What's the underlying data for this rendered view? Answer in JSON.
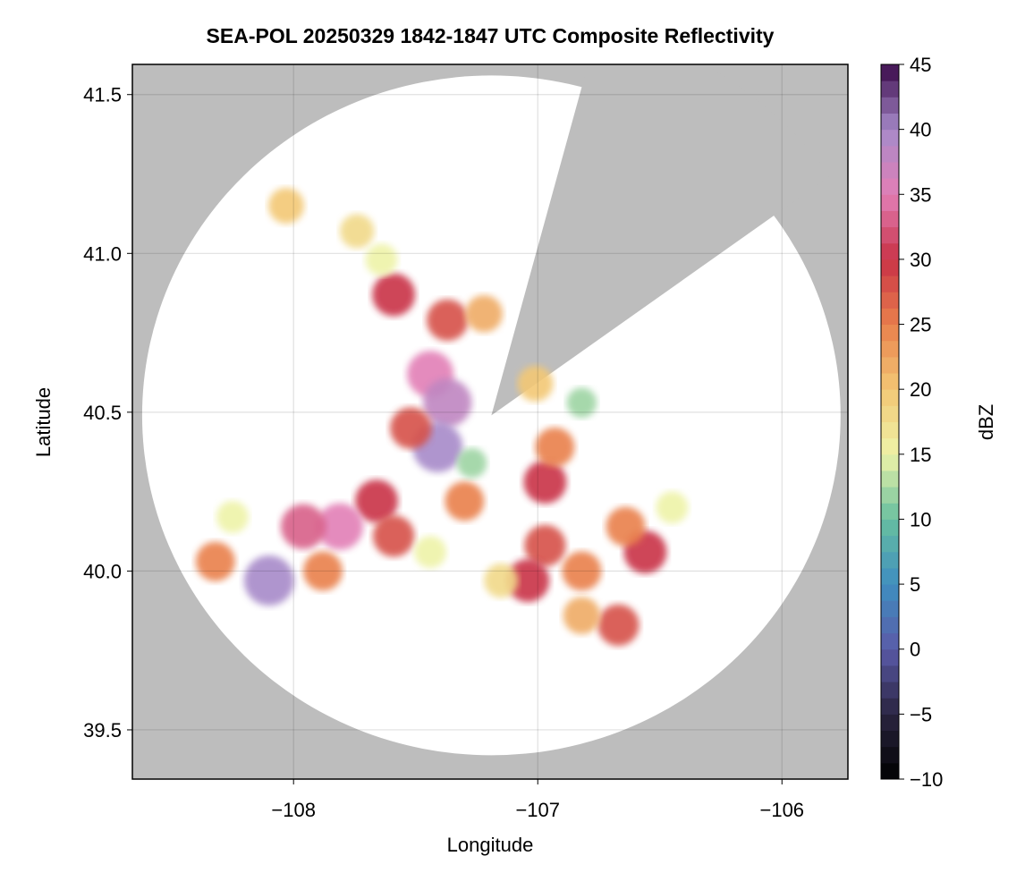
{
  "chart_data": {
    "type": "radar-map",
    "title": "SEA-POL 20250329 1842-1847 UTC Composite Reflectivity",
    "x_label": "Longitude",
    "y_label": "Latitude",
    "colorbar_label": "dBZ",
    "xlim": [
      -108.66,
      -105.73
    ],
    "ylim": [
      39.345,
      41.595
    ],
    "xticks": [
      {
        "value": -108,
        "label": "−108"
      },
      {
        "value": -107,
        "label": "−107"
      },
      {
        "value": -106,
        "label": "−106"
      }
    ],
    "yticks": [
      39.5,
      {
        "value": 40.0,
        "label": "40.0"
      },
      40.5,
      {
        "value": 41.0,
        "label": "41.0"
      },
      41.5
    ],
    "grid": true,
    "clim": [
      -10,
      45
    ],
    "cticks": [
      {
        "value": -10,
        "label": "−10"
      },
      {
        "value": -5,
        "label": "−5"
      },
      0,
      5,
      10,
      15,
      20,
      25,
      30,
      35,
      40,
      45
    ],
    "colormap": [
      "#000000",
      "#2a2440",
      "#5a5aa8",
      "#3f8ec0",
      "#67bfa0",
      "#eef3a8",
      "#f3c875",
      "#e9804c",
      "#c93246",
      "#e27fb6",
      "#a78ac9",
      "#3a0a4a"
    ],
    "background_color": "#bdbdbd",
    "radar": {
      "lon": -107.19,
      "lat": 40.49,
      "lon_radius": 1.43,
      "lat_radius": 1.07,
      "blocked_azimuths": [
        15,
        54
      ]
    },
    "echoes": {
      "lon": [
        -107.59,
        -107.37,
        -107.22,
        -107.44,
        -107.37,
        -107.41,
        -107.52,
        -107.66,
        -107.81,
        -107.96,
        -108.1,
        -108.32,
        -108.25,
        -107.88,
        -107.59,
        -107.3,
        -107.27,
        -106.97,
        -106.93,
        -107.01,
        -106.82,
        -106.97,
        -107.04,
        -106.82,
        -106.56,
        -106.64,
        -106.67,
        -106.82,
        -107.15,
        -107.44,
        -107.74,
        -108.03,
        -106.45,
        -107.64
      ],
      "lat": [
        40.87,
        40.79,
        40.81,
        40.62,
        40.53,
        40.39,
        40.45,
        40.22,
        40.14,
        40.14,
        39.97,
        40.03,
        40.17,
        40.0,
        40.11,
        40.22,
        40.34,
        40.28,
        40.39,
        40.59,
        40.53,
        40.08,
        39.97,
        40.0,
        40.06,
        40.14,
        39.83,
        39.86,
        39.97,
        40.06,
        41.07,
        41.15,
        40.2,
        40.98
      ],
      "dbz": [
        30,
        28,
        22,
        35,
        38,
        40,
        28,
        30,
        35,
        33,
        40,
        25,
        15,
        25,
        28,
        25,
        12,
        30,
        25,
        20,
        12,
        28,
        30,
        25,
        30,
        25,
        28,
        22,
        18,
        15,
        18,
        20,
        15,
        15
      ]
    }
  }
}
